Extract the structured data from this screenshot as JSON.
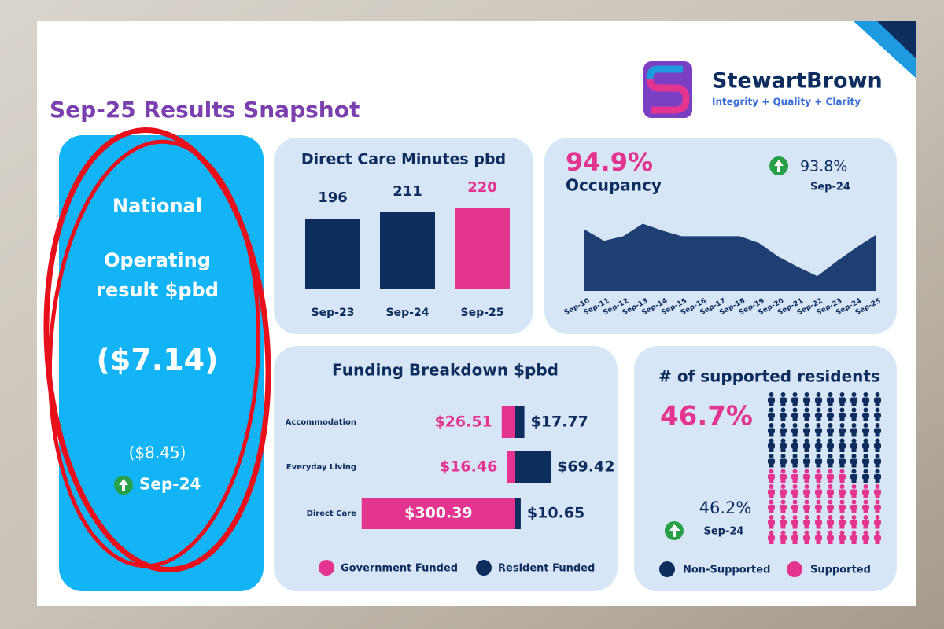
{
  "header": {
    "title": "Sep-25 Results Snapshot",
    "brand": "StewartBrown",
    "tagline": "Integrity + Quality + Clarity"
  },
  "national": {
    "heading": "National",
    "label_line1": "Operating",
    "label_line2": "result $pbd",
    "value": "($7.14)",
    "previous": "($8.45)",
    "previous_period": "Sep-24"
  },
  "chart_data": [
    {
      "type": "bar",
      "title": "Direct Care Minutes pbd",
      "categories": [
        "Sep-23",
        "Sep-24",
        "Sep-25"
      ],
      "values": [
        196,
        211,
        220
      ],
      "colors": [
        "#0d2d5e",
        "#0d2d5e",
        "#e3358f"
      ],
      "ylim": [
        30,
        220
      ]
    },
    {
      "type": "area",
      "title": "Occupancy",
      "headline": "94.9%",
      "comparison": "93.8%",
      "comparison_period": "Sep-24",
      "color": "#1e3f73",
      "categories": [
        "Sep-10",
        "Sep-11",
        "Sep-12",
        "Sep-13",
        "Sep-14",
        "Sep-15",
        "Sep-16",
        "Sep-17",
        "Sep-18",
        "Sep-19",
        "Sep-20",
        "Sep-21",
        "Sep-22",
        "Sep-23",
        "Sep-24",
        "Sep-25"
      ],
      "values": [
        95.4,
        94.4,
        94.8,
        95.9,
        95.3,
        94.8,
        94.8,
        94.8,
        94.8,
        94.2,
        93.0,
        92.1,
        91.3,
        92.6,
        93.8,
        94.9
      ],
      "ylim": [
        90,
        96
      ]
    },
    {
      "type": "hbar",
      "title": "Funding Breakdown $pbd",
      "categories": [
        "Accommodation",
        "Everyday Living",
        "Direct Care"
      ],
      "series": [
        {
          "name": "Government Funded",
          "color": "#e3358f",
          "values": [
            26.51,
            16.46,
            300.39
          ],
          "value_labels": [
            "$26.51",
            "$16.46",
            "$300.39"
          ]
        },
        {
          "name": "Resident Funded",
          "color": "#0d2d5e",
          "values": [
            17.77,
            69.42,
            10.65
          ],
          "value_labels": [
            "$17.77",
            "$69.42",
            "$10.65"
          ]
        }
      ]
    },
    {
      "type": "pictograph",
      "title": "# of supported residents",
      "value": 46.7,
      "value_label": "46.7%",
      "comparison": "46.2%",
      "comparison_period": "Sep-24",
      "series": [
        {
          "name": "Non-Supported",
          "color": "#0d2d5e"
        },
        {
          "name": "Supported",
          "color": "#e3358f"
        }
      ]
    }
  ]
}
